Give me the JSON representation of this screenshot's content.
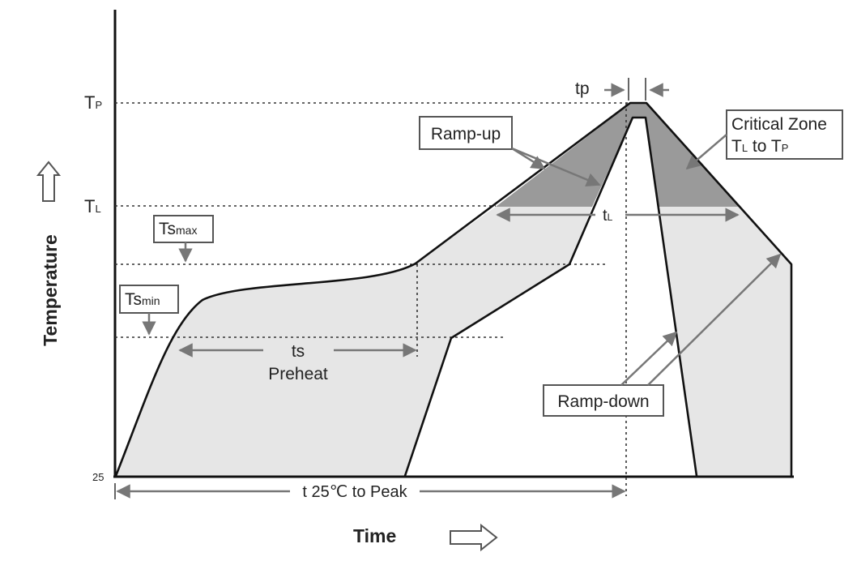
{
  "axes": {
    "y_title": "Temperature",
    "x_title": "Time",
    "tp_label": "T",
    "tp_sub": "P",
    "tl_label": "T",
    "tl_sub": "L",
    "origin_label": "25"
  },
  "labels": {
    "tp_width": "tp",
    "ramp_up": "Ramp-up",
    "critical_zone_line1": "Critical Zone",
    "critical_zone_t1": "T",
    "critical_zone_s1": "L",
    "critical_zone_mid": " to T",
    "critical_zone_s2": "P",
    "tl_span_t": "t",
    "tl_span_sub": "L",
    "ts_max_t": "Ts",
    "ts_max_sub": "max",
    "ts_min_t": "Ts",
    "ts_min_sub": "min",
    "ts": "ts",
    "preheat": "Preheat",
    "ramp_down": "Ramp-down",
    "t25_to_peak": "t 25℃ to Peak"
  },
  "colors": {
    "process_window": "#e6e6e6",
    "critical_zone": "#9a9a9a",
    "outline": "#111111",
    "annotation": "#777777"
  }
}
